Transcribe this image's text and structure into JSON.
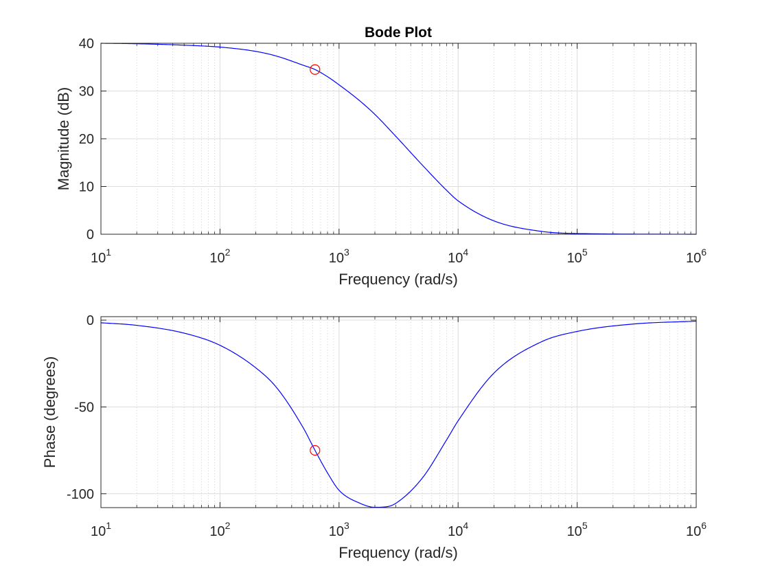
{
  "chart_data": [
    {
      "type": "line",
      "title": "Bode Plot",
      "xlabel": "Frequency (rad/s)",
      "ylabel": "Magnitude (dB)",
      "xscale": "log",
      "xlim": [
        10,
        1000000
      ],
      "ylim": [
        0,
        40
      ],
      "grid": true,
      "x_tick_labels": [
        {
          "value": 10,
          "base": "10",
          "exp": "1"
        },
        {
          "value": 100,
          "base": "10",
          "exp": "2"
        },
        {
          "value": 1000,
          "base": "10",
          "exp": "3"
        },
        {
          "value": 10000,
          "base": "10",
          "exp": "4"
        },
        {
          "value": 100000,
          "base": "10",
          "exp": "5"
        },
        {
          "value": 1000000,
          "base": "10",
          "exp": "6"
        }
      ],
      "y_ticks": [
        0,
        10,
        20,
        30,
        40
      ],
      "series": [
        {
          "color": "#0000ff",
          "x": [
            10,
            20,
            50,
            100,
            200,
            300,
            500,
            628,
            800,
            1000,
            1500,
            2000,
            3000,
            5000,
            8000,
            10000,
            20000,
            50000,
            100000,
            1000000
          ],
          "y": [
            40.0,
            39.9,
            39.6,
            39.2,
            38.3,
            37.3,
            35.4,
            34.5,
            33.0,
            31.3,
            27.9,
            25.1,
            20.5,
            14.5,
            9.2,
            7.0,
            2.8,
            0.6,
            0.15,
            0.0
          ]
        }
      ],
      "markers": [
        {
          "x": 628,
          "y": 34.5,
          "color": "#ff0000",
          "shape": "circle"
        }
      ]
    },
    {
      "type": "line",
      "title": "",
      "xlabel": "Frequency (rad/s)",
      "ylabel": "Phase (degrees)",
      "xscale": "log",
      "xlim": [
        10,
        1000000
      ],
      "ylim": [
        -108,
        2
      ],
      "grid": true,
      "x_tick_labels": [
        {
          "value": 10,
          "base": "10",
          "exp": "1"
        },
        {
          "value": 100,
          "base": "10",
          "exp": "2"
        },
        {
          "value": 1000,
          "base": "10",
          "exp": "3"
        },
        {
          "value": 10000,
          "base": "10",
          "exp": "4"
        },
        {
          "value": 100000,
          "base": "10",
          "exp": "5"
        },
        {
          "value": 1000000,
          "base": "10",
          "exp": "6"
        }
      ],
      "y_ticks": [
        0,
        -50,
        -100
      ],
      "series": [
        {
          "color": "#0000ff",
          "x": [
            10,
            20,
            50,
            100,
            200,
            300,
            500,
            628,
            800,
            1000,
            1500,
            2000,
            2500,
            3000,
            5000,
            8000,
            10000,
            20000,
            50000,
            100000,
            300000,
            1000000
          ],
          "y": [
            -1.5,
            -3.0,
            -7.5,
            -14.5,
            -27.5,
            -39.0,
            -62.0,
            -75.0,
            -88.0,
            -98.0,
            -105.5,
            -107.8,
            -107.5,
            -105.5,
            -91.0,
            -69.0,
            -58.0,
            -30.5,
            -12.5,
            -6.5,
            -2.2,
            -0.6
          ]
        }
      ],
      "markers": [
        {
          "x": 628,
          "y": -75.0,
          "color": "#ff0000",
          "shape": "circle"
        }
      ]
    }
  ]
}
